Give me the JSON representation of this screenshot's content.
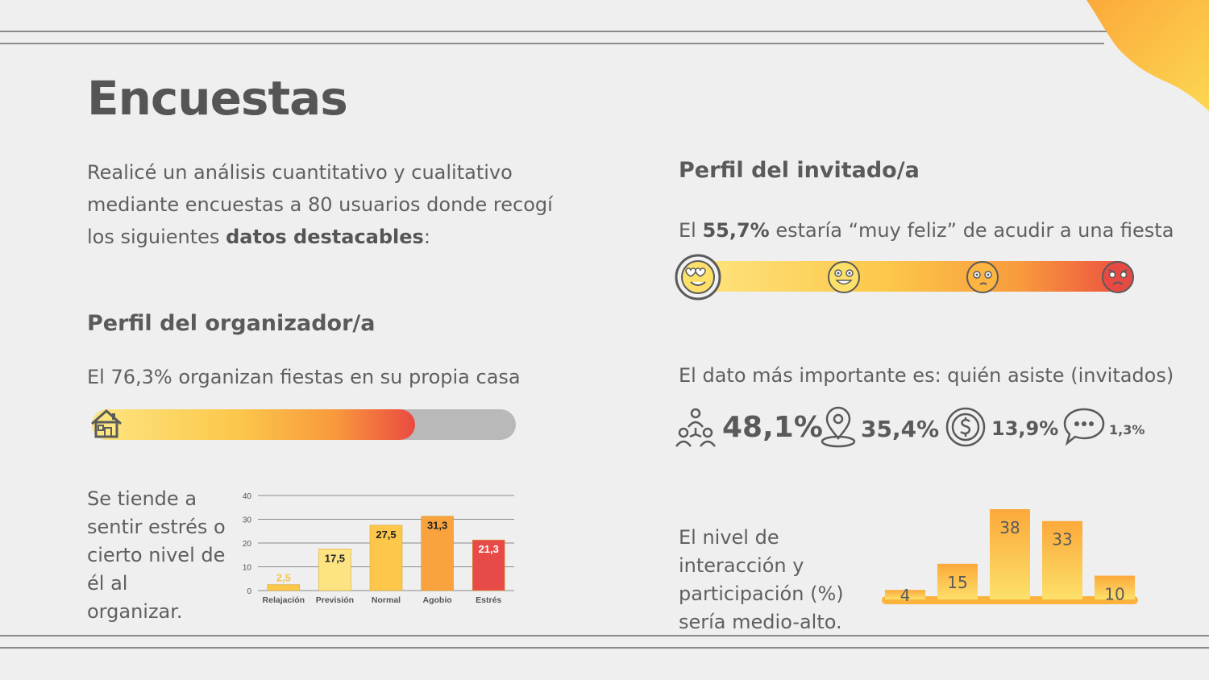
{
  "slide": {
    "title": "Encuestas",
    "intro_part1": "Realicé un análisis cuantitativo y cualitativo mediante encuestas a 80 usuarios donde recogí los siguientes ",
    "intro_bold": "datos destacables",
    "intro_end": ":"
  },
  "organizer": {
    "heading": "Perfil del organizador/a",
    "stat_text": "El 76,3% organizan fiestas en su propia casa",
    "home_fraction": 0.763,
    "stress_text": "Se tiende a sentir estrés o cierto nivel de él al organizar."
  },
  "guest": {
    "heading": "Perfil del invitado/a",
    "happy_pre": "El ",
    "happy_bold": "55,7%",
    "happy_post": " estaría “muy feliz” de acudir a una fiesta",
    "important_text": "El dato más importante es: quién asiste (invitados)",
    "factors": [
      {
        "icon": "people-icon",
        "value": "48,1%"
      },
      {
        "icon": "location-pin-icon",
        "value": "35,4%"
      },
      {
        "icon": "money-icon",
        "value": "13,9%"
      },
      {
        "icon": "chat-bubble-icon",
        "value": "1,3%"
      }
    ],
    "interaction_text": "El nivel de interacción y participación (%) sería medio-alto."
  },
  "chart_data": [
    {
      "type": "bar",
      "categories": [
        "Relajación",
        "Previsión",
        "Normal",
        "Agobio",
        "Estrés"
      ],
      "values": [
        2.5,
        17.5,
        27.5,
        31.3,
        21.3
      ],
      "value_labels": [
        "2,5",
        "17,5",
        "27,5",
        "31,3",
        "21,3"
      ],
      "ylim": [
        0,
        40
      ],
      "yticks": [
        0,
        10,
        20,
        30,
        40
      ],
      "grid": true,
      "colors": [
        "#fcc84a",
        "#fde382",
        "#fcc74a",
        "#f8a33e",
        "#e84a48"
      ]
    },
    {
      "type": "bar",
      "values": [
        4,
        15,
        38,
        33,
        10
      ],
      "value_labels": [
        "4",
        "15",
        "38",
        "33",
        "10"
      ],
      "grid": false
    }
  ]
}
